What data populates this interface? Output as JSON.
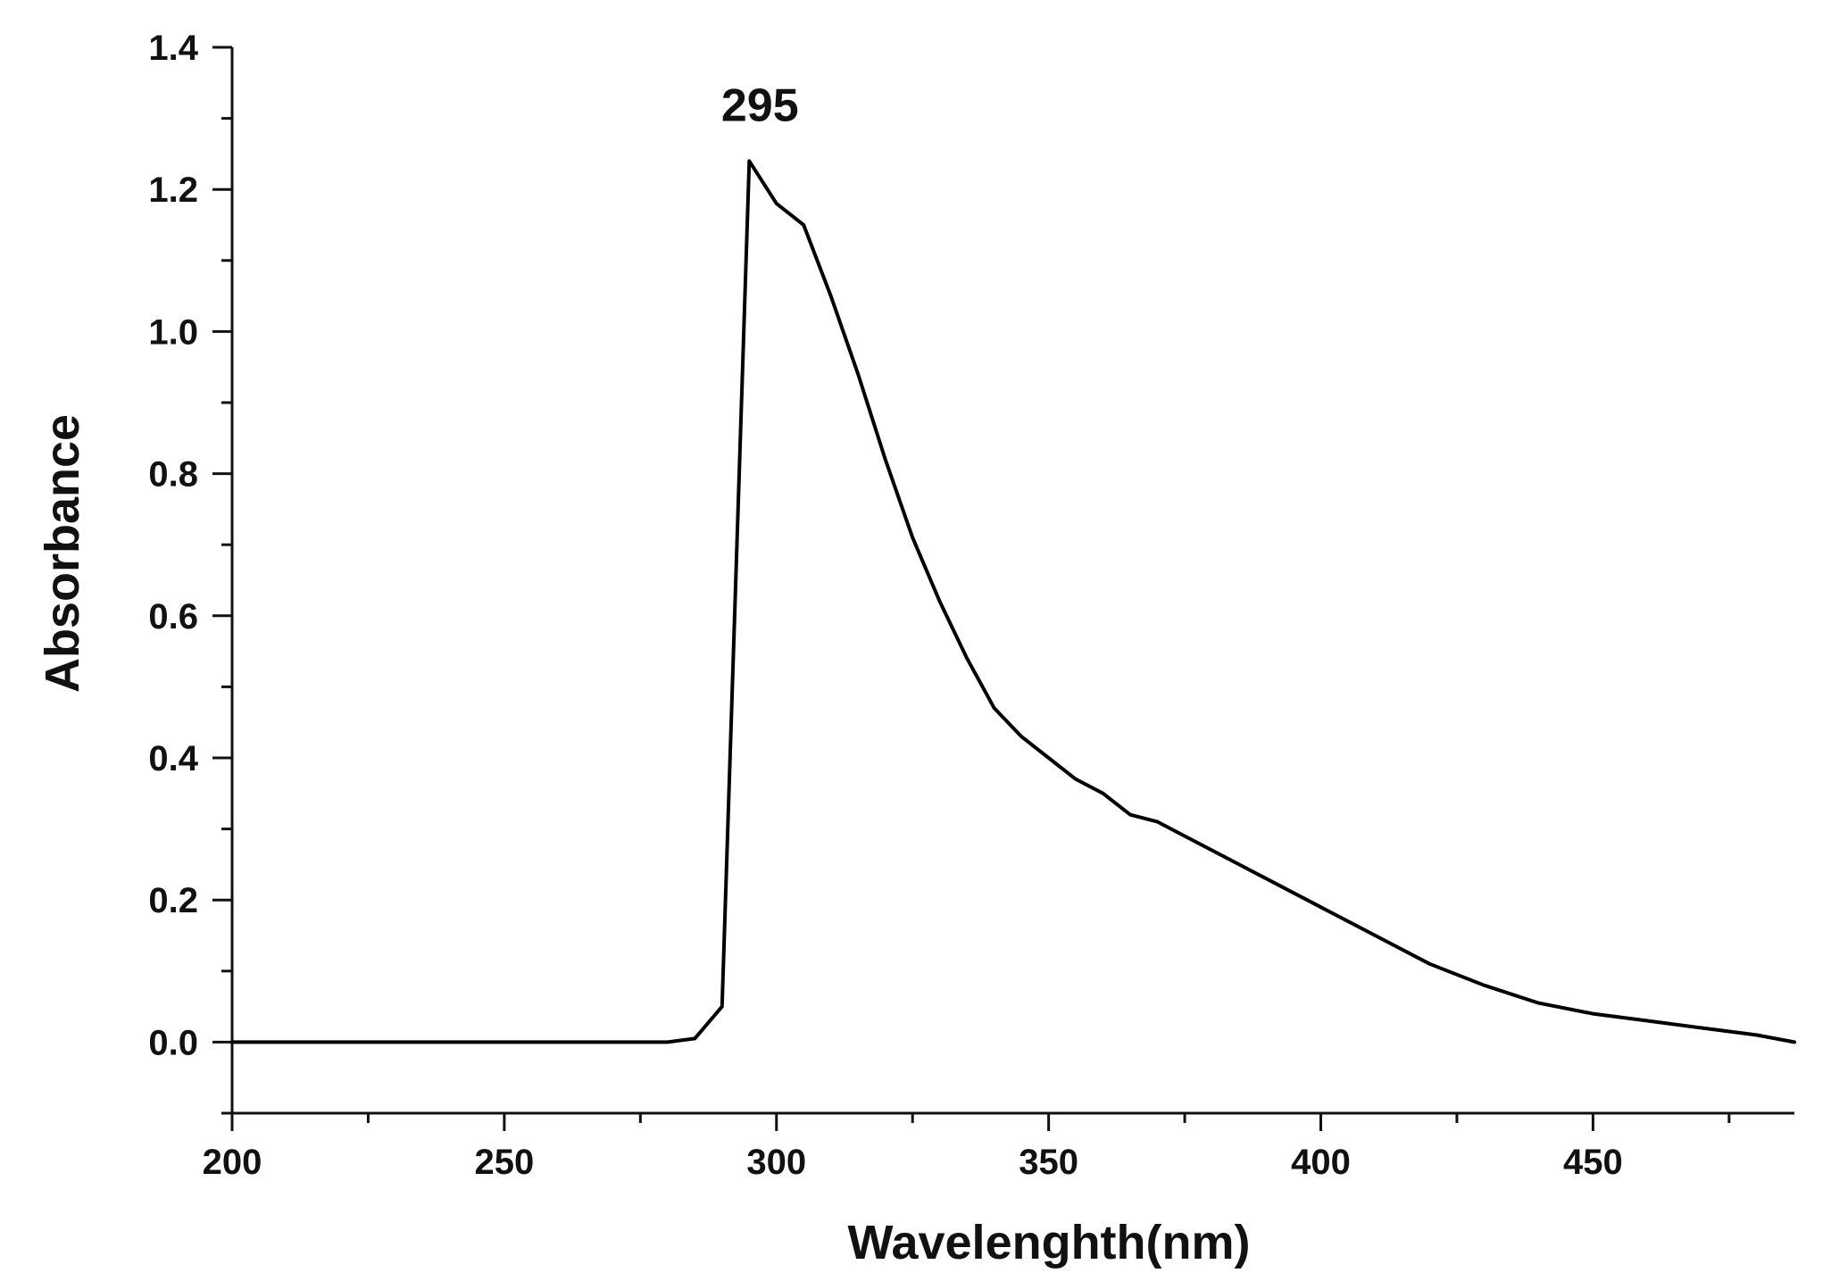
{
  "chart_data": {
    "type": "line",
    "xlabel": "Wavelenghth(nm)",
    "ylabel": "Absorbance",
    "xlim": [
      200,
      487
    ],
    "ylim": [
      -0.1,
      1.4
    ],
    "x_ticks": [
      200,
      250,
      300,
      350,
      400,
      450
    ],
    "x_tick_labels": [
      "200",
      "250",
      "300",
      "350",
      "400",
      "450"
    ],
    "x_minor_ticks": [
      225,
      275,
      325,
      375,
      425,
      475
    ],
    "y_ticks": [
      0.0,
      0.2,
      0.4,
      0.6,
      0.8,
      1.0,
      1.2,
      1.4
    ],
    "y_tick_labels": [
      "0.0",
      "0.2",
      "0.4",
      "0.6",
      "0.8",
      "1.0",
      "1.2",
      "1.4"
    ],
    "y_minor_ticks": [
      -0.1,
      0.1,
      0.3,
      0.5,
      0.7,
      0.9,
      1.1,
      1.3
    ],
    "grid": false,
    "line_color": "#000000",
    "annotations": [
      {
        "text": "295",
        "x": 295,
        "y": 1.24
      }
    ],
    "series": [
      {
        "x": [
          200,
          210,
          220,
          230,
          240,
          250,
          260,
          270,
          280,
          285,
          290,
          295,
          300,
          305,
          310,
          315,
          320,
          325,
          330,
          335,
          340,
          345,
          350,
          355,
          360,
          365,
          370,
          375,
          380,
          390,
          400,
          410,
          420,
          430,
          440,
          450,
          460,
          470,
          480,
          487
        ],
        "y": [
          0.0,
          0.0,
          0.0,
          0.0,
          0.0,
          0.0,
          0.0,
          0.0,
          0.0,
          0.005,
          0.05,
          1.24,
          1.18,
          1.15,
          1.05,
          0.94,
          0.82,
          0.71,
          0.62,
          0.54,
          0.47,
          0.43,
          0.4,
          0.37,
          0.35,
          0.32,
          0.31,
          0.29,
          0.27,
          0.23,
          0.19,
          0.15,
          0.11,
          0.08,
          0.055,
          0.04,
          0.03,
          0.02,
          0.01,
          0.0
        ]
      }
    ]
  }
}
